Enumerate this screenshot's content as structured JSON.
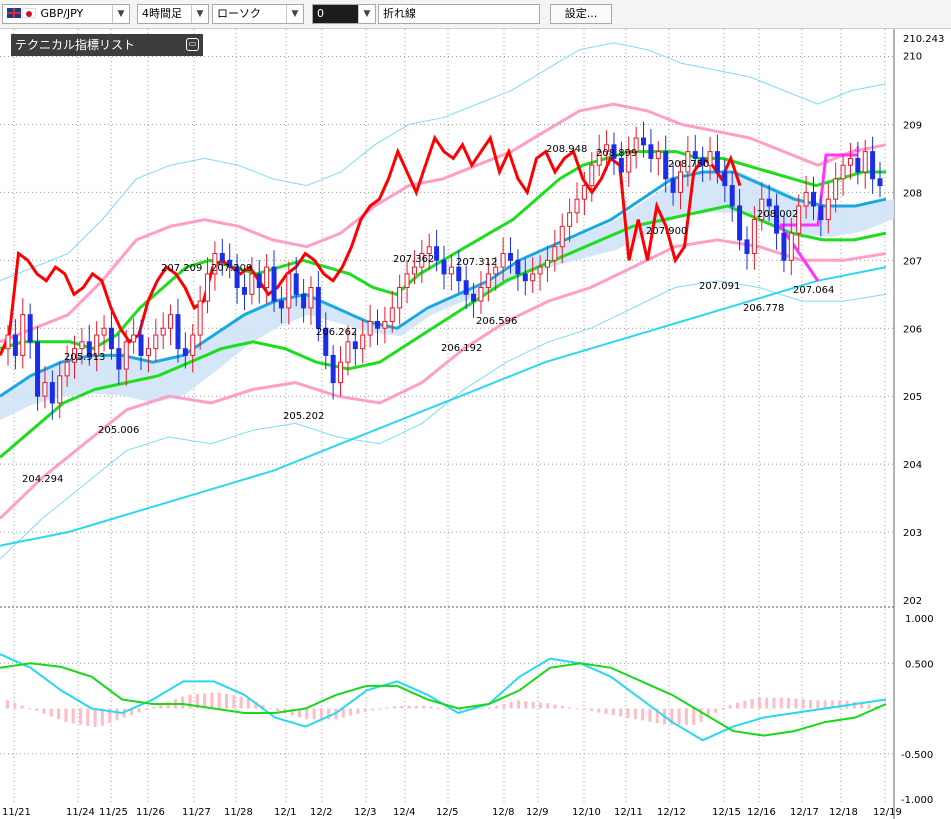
{
  "toolbar": {
    "pair": "GBP/JPY",
    "timeframe": "4時間足",
    "chart_type": "ローソク",
    "sub_value": "0",
    "line_type": "折れ線",
    "settings_label": "設定..."
  },
  "panel": {
    "title": "テクニカル指標リスト",
    "collapse_icon": "minimize-icon"
  },
  "colors": {
    "up_candle": "#e8192c",
    "down_candle": "#1a2ee8",
    "ichimoku_red": "#ff0000",
    "bb_green": "#1ddd1d",
    "bb_pink": "#ff9ec8",
    "ma_cyan": "#2ad8f0",
    "bb_outer_light": "#7cdcf5",
    "cloud": "#cfe3f6",
    "macd": "#1ad71a",
    "signal": "#26d9f0",
    "hist": "#ffbcc4",
    "highlight": "#ff33ff"
  },
  "chart_data": [
    {
      "type": "candlestick",
      "price_axis_ticks": [
        "210.243",
        "210",
        "209",
        "208",
        "207",
        "206",
        "205",
        "204",
        "203",
        "202"
      ],
      "ylim": [
        202,
        210.243
      ],
      "x_tick_labels": [
        "11/21",
        "11/24",
        "11/25",
        "11/26",
        "11/27",
        "11/28",
        "12/1",
        "12/2",
        "12/3",
        "12/4",
        "12/5",
        "12/8",
        "12/9",
        "12/10",
        "12/11",
        "12/12",
        "12/15",
        "12/16",
        "12/17",
        "12/18",
        "12/19"
      ],
      "price_annotations": [
        "204.294",
        "205.913",
        "205.006",
        "207.209",
        "207.209",
        "206.262",
        "205.202",
        "207.362",
        "206.192",
        "207.312",
        "206.596",
        "208.948",
        "208.899",
        "207.900",
        "208.750",
        "207.091",
        "206.778",
        "208.002",
        "207.064"
      ],
      "label_4": "4",
      "closes": [
        205.9,
        205.6,
        206.2,
        205.8,
        205.0,
        205.2,
        204.9,
        205.3,
        205.5,
        205.7,
        205.8,
        205.6,
        205.9,
        206.0,
        205.7,
        205.4,
        205.8,
        205.9,
        205.6,
        205.7,
        205.9,
        206.0,
        206.2,
        205.7,
        205.6,
        205.9,
        206.4,
        206.8,
        207.1,
        207.0,
        206.9,
        206.6,
        206.5,
        206.8,
        206.6,
        206.9,
        206.4,
        206.3,
        206.8,
        206.5,
        206.3,
        206.6,
        206.0,
        205.6,
        205.2,
        205.5,
        205.8,
        205.7,
        205.9,
        206.1,
        206.0,
        206.1,
        206.3,
        206.6,
        206.8,
        206.9,
        207.1,
        207.2,
        207.0,
        206.8,
        206.9,
        206.7,
        206.5,
        206.4,
        206.6,
        206.8,
        206.9,
        207.1,
        207.0,
        206.8,
        206.7,
        206.8,
        206.9,
        207.0,
        207.2,
        207.5,
        207.7,
        207.9,
        208.1,
        208.4,
        208.6,
        208.7,
        208.5,
        208.3,
        208.6,
        208.8,
        208.7,
        208.5,
        208.6,
        208.2,
        208.0,
        208.3,
        208.6,
        208.5,
        208.4,
        208.6,
        208.3,
        208.1,
        207.8,
        207.3,
        207.1,
        207.6,
        207.9,
        207.8,
        207.4,
        207.0,
        207.4,
        207.8,
        208.0,
        207.8,
        207.6,
        207.9,
        208.2,
        208.4,
        208.5,
        208.3,
        208.6,
        208.2,
        208.1
      ],
      "series": [
        {
          "name": "red-line",
          "values": [
            205.6,
            205.9,
            207.1,
            207.0,
            206.8,
            206.7,
            206.9,
            206.8,
            206.5,
            206.6,
            206.8,
            206.7,
            206.3,
            206.0,
            205.8,
            205.9,
            206.4,
            206.7,
            206.9,
            206.8,
            206.6,
            206.3,
            206.4,
            206.9,
            207.0,
            206.9,
            206.8,
            206.9,
            206.7,
            206.5,
            206.6,
            206.8,
            206.9,
            207.1,
            207.0,
            206.8,
            206.7,
            206.9,
            207.2,
            207.6,
            207.8,
            207.9,
            208.2,
            208.6,
            208.3,
            208.0,
            208.4,
            208.8,
            208.6,
            208.5,
            208.7,
            208.4,
            208.6,
            208.8,
            208.3,
            208.6,
            208.2,
            208.0,
            208.5,
            208.6,
            208.3,
            208.5,
            208.6,
            208.2,
            208.0,
            208.2,
            208.5,
            208.4,
            207.0,
            207.6,
            207.0,
            207.8,
            207.5,
            207.0,
            207.2,
            208.3,
            208.5,
            208.4,
            208.2,
            208.5,
            208.1
          ]
        },
        {
          "name": "green-upper",
          "values": [
            205.7,
            205.8,
            205.8,
            205.8,
            205.7,
            205.9,
            206.3,
            206.6,
            206.9,
            207.0,
            206.9,
            206.8,
            206.9,
            207.0,
            206.9,
            206.8,
            206.6,
            206.5,
            206.8,
            207.0,
            207.2,
            207.4,
            207.6,
            207.9,
            208.2,
            208.4,
            208.5,
            208.6,
            208.6,
            208.6,
            208.5,
            208.5,
            208.4,
            208.3,
            208.2,
            208.1,
            208.2,
            208.3,
            208.3
          ]
        },
        {
          "name": "green-lower",
          "values": [
            204.1,
            204.5,
            204.9,
            205.1,
            205.2,
            205.3,
            205.5,
            205.7,
            205.8,
            205.7,
            205.5,
            205.4,
            205.5,
            205.8,
            206.1,
            206.4,
            206.7,
            206.9,
            207.1,
            207.3,
            207.5,
            207.6,
            207.7,
            207.8,
            207.6,
            207.4,
            207.3,
            207.3,
            207.4
          ]
        },
        {
          "name": "pink-upper",
          "values": [
            205.8,
            206.0,
            206.2,
            206.7,
            207.3,
            207.5,
            207.6,
            207.5,
            207.3,
            207.2,
            207.4,
            207.8,
            208.1,
            208.2,
            208.4,
            208.6,
            208.9,
            209.2,
            209.3,
            209.2,
            209.0,
            208.9,
            208.8,
            208.6,
            208.4,
            208.6,
            208.7
          ]
        },
        {
          "name": "pink-lower",
          "values": [
            203.2,
            203.8,
            204.3,
            204.8,
            205.0,
            204.9,
            205.1,
            205.2,
            205.0,
            204.9,
            205.2,
            205.7,
            206.1,
            206.4,
            206.6,
            206.9,
            207.2,
            207.3,
            207.2,
            207.0,
            207.0,
            207.1
          ]
        },
        {
          "name": "cyan-ma",
          "values": [
            205.0,
            205.3,
            205.5,
            205.6,
            205.6,
            205.5,
            205.6,
            205.9,
            206.2,
            206.4,
            206.5,
            206.3,
            206.1,
            206.0,
            206.3,
            206.5,
            206.7,
            207.0,
            207.2,
            207.4,
            207.6,
            207.9,
            208.2,
            208.3,
            208.3,
            208.1,
            207.9,
            207.8,
            207.8,
            207.9
          ]
        },
        {
          "name": "long-ma",
          "values": [
            202.8,
            203.0,
            203.3,
            203.6,
            203.9,
            204.3,
            204.7,
            205.1,
            205.5,
            205.8,
            206.1,
            206.4,
            206.7,
            206.9
          ]
        }
      ]
    },
    {
      "type": "line",
      "osc_axis_ticks": [
        "1.000",
        "0.500",
        "-0.500",
        "-1.000"
      ],
      "ylim": [
        -1,
        1
      ],
      "series": [
        {
          "name": "macd-green",
          "values": [
            0.45,
            0.5,
            0.46,
            0.35,
            0.1,
            0.05,
            0.05,
            0.0,
            -0.05,
            -0.05,
            0.0,
            0.15,
            0.25,
            0.25,
            0.1,
            0.0,
            0.05,
            0.2,
            0.45,
            0.5,
            0.45,
            0.3,
            0.15,
            -0.05,
            -0.25,
            -0.3,
            -0.25,
            -0.15,
            -0.1,
            0.05
          ]
        },
        {
          "name": "signal-cyan",
          "values": [
            0.6,
            0.45,
            0.2,
            0.0,
            -0.05,
            0.1,
            0.3,
            0.3,
            0.15,
            -0.1,
            -0.2,
            -0.05,
            0.2,
            0.3,
            0.15,
            -0.05,
            0.05,
            0.35,
            0.55,
            0.5,
            0.35,
            0.1,
            -0.15,
            -0.35,
            -0.2,
            -0.1,
            -0.05,
            0.0,
            0.05,
            0.1
          ]
        }
      ]
    }
  ]
}
